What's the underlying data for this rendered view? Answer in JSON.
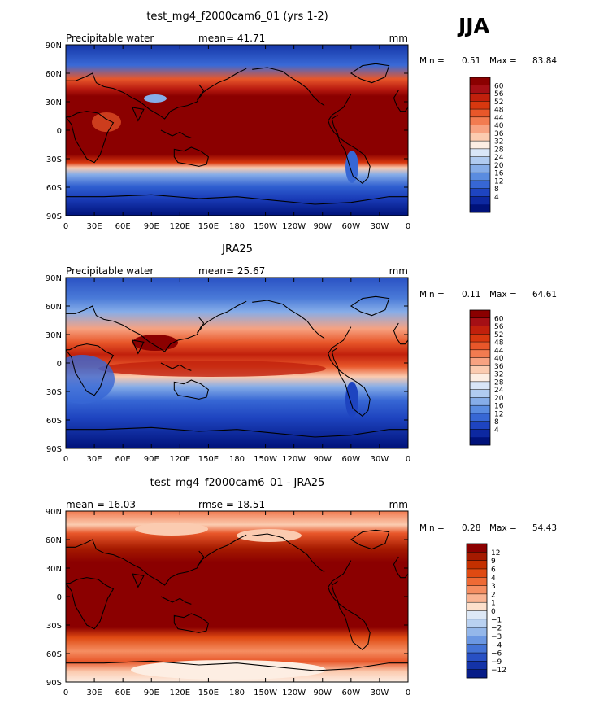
{
  "season": "JJA",
  "panels": [
    {
      "title": "test_mg4_f2000cam6_01 (yrs 1-2)",
      "left": "Precipitable water",
      "center": "mean=  41.71",
      "units": "mm",
      "min_label": "Min =",
      "min_value": "0.51",
      "max_label": "Max =",
      "max_value": "83.84"
    },
    {
      "title": "JRA25",
      "left": "Precipitable water",
      "center": "mean=  25.67",
      "units": "mm",
      "min_label": "Min =",
      "min_value": "0.11",
      "max_label": "Max =",
      "max_value": "64.61"
    },
    {
      "title": "test_mg4_f2000cam6_01 - JRA25",
      "left": "mean =  16.03",
      "center": "rmse =  18.51",
      "units": "mm",
      "min_label": "Min =",
      "min_value": "0.28",
      "max_label": "Max =",
      "max_value": "54.43"
    }
  ],
  "lat_labels": [
    "90N",
    "60N",
    "30N",
    "0",
    "30S",
    "60S",
    "90S"
  ],
  "lon_labels": [
    "0",
    "30E",
    "60E",
    "90E",
    "120E",
    "150E",
    "180",
    "150W",
    "120W",
    "90W",
    "60W",
    "30W",
    "0"
  ],
  "colorbar_field": {
    "labels": [
      "60",
      "56",
      "52",
      "48",
      "44",
      "40",
      "36",
      "32",
      "28",
      "24",
      "20",
      "16",
      "12",
      "8",
      "4"
    ],
    "colors": [
      "#8b0000",
      "#a50f15",
      "#c1200c",
      "#d8380f",
      "#e8572a",
      "#f27b50",
      "#f7a281",
      "#fbcbb0",
      "#fdeee3",
      "#d9e6f7",
      "#b0cbf0",
      "#86ade8",
      "#5a8ce0",
      "#3767d4",
      "#1e44c0",
      "#0d28a0",
      "#00127a"
    ]
  },
  "colorbar_diff": {
    "labels": [
      "12",
      "9",
      "6",
      "4",
      "3",
      "2",
      "1",
      "0",
      "−1",
      "−2",
      "−3",
      "−4",
      "−6",
      "−9",
      "−12"
    ],
    "colors": [
      "#8b0000",
      "#a51a00",
      "#c43000",
      "#df4a12",
      "#ee6a35",
      "#f58e62",
      "#fab493",
      "#fde0cc",
      "#dde8f6",
      "#b9d1f1",
      "#94b7ea",
      "#6b97e2",
      "#4473d6",
      "#2850c4",
      "#1433a8",
      "#071c88"
    ]
  },
  "chart_data": [
    {
      "type": "heatmap",
      "title": "test_mg4_f2000cam6_01 (yrs 1-2)",
      "variable": "Precipitable water",
      "units": "mm",
      "mean": 41.71,
      "min": 0.51,
      "max": 83.84,
      "xlim": [
        0,
        360
      ],
      "ylim": [
        -90,
        90
      ],
      "levels": [
        4,
        8,
        12,
        16,
        20,
        24,
        28,
        32,
        36,
        40,
        44,
        48,
        52,
        56,
        60
      ]
    },
    {
      "type": "heatmap",
      "title": "JRA25",
      "variable": "Precipitable water",
      "units": "mm",
      "mean": 25.67,
      "min": 0.11,
      "max": 64.61,
      "xlim": [
        0,
        360
      ],
      "ylim": [
        -90,
        90
      ],
      "levels": [
        4,
        8,
        12,
        16,
        20,
        24,
        28,
        32,
        36,
        40,
        44,
        48,
        52,
        56,
        60
      ]
    },
    {
      "type": "heatmap",
      "title": "test_mg4_f2000cam6_01 - JRA25",
      "units": "mm",
      "mean": 16.03,
      "rmse": 18.51,
      "min": 0.28,
      "max": 54.43,
      "xlim": [
        0,
        360
      ],
      "ylim": [
        -90,
        90
      ],
      "levels": [
        -12,
        -9,
        -6,
        -4,
        -3,
        -2,
        -1,
        0,
        1,
        2,
        3,
        4,
        6,
        9,
        12
      ]
    }
  ]
}
